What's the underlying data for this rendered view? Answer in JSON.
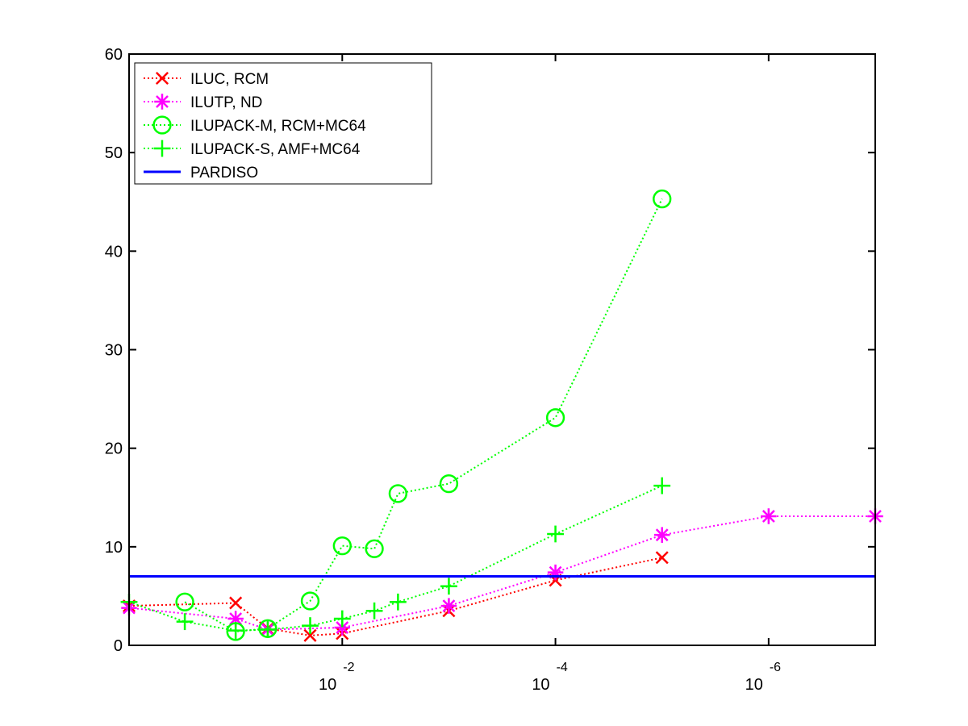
{
  "chart_data": {
    "type": "line",
    "x_scale": "log",
    "x_axis_reversed": true,
    "xlim": [
      1,
      1e-07
    ],
    "ylim": [
      0,
      60
    ],
    "y_ticks": [
      0,
      10,
      20,
      30,
      40,
      50,
      60
    ],
    "x_ticks": [
      {
        "value": 0.01,
        "base": "10",
        "exponent": "-2"
      },
      {
        "value": 0.0001,
        "base": "10",
        "exponent": "-4"
      },
      {
        "value": 1e-06,
        "base": "10",
        "exponent": "-6"
      }
    ],
    "legend_position": "top-left",
    "grid": false,
    "series": [
      {
        "name": "ILUC, RCM",
        "color": "#ff0000",
        "marker": "x",
        "line": "dotted",
        "x": [
          1,
          0.1,
          0.05,
          0.02,
          0.01,
          0.001,
          0.0001,
          1e-05
        ],
        "y": [
          4,
          4.3,
          1.7,
          1,
          1.2,
          3.5,
          6.6,
          8.9
        ]
      },
      {
        "name": "ILUTP,  ND",
        "color": "#ff00ff",
        "marker": "star",
        "line": "dotted",
        "x": [
          1,
          0.1,
          0.05,
          0.01,
          0.001,
          0.0001,
          1e-05,
          1e-06,
          1e-07
        ],
        "y": [
          3.8,
          2.7,
          1.6,
          1.8,
          4,
          7.4,
          11.2,
          13.1,
          13.1
        ]
      },
      {
        "name": "ILUPACK-M, RCM+MC64",
        "color": "#00ff00",
        "marker": "circle",
        "line": "dotted",
        "x": [
          0.3,
          0.1,
          0.05,
          0.02,
          0.01,
          0.005,
          0.003,
          0.001,
          0.0001,
          1e-05
        ],
        "y": [
          4.4,
          1.4,
          1.7,
          4.5,
          10.1,
          9.8,
          15.4,
          16.4,
          23.1,
          45.3
        ]
      },
      {
        "name": "ILUPACK-S, AMF+MC64",
        "color": "#00ff00",
        "marker": "plus",
        "line": "dotted",
        "x": [
          1,
          0.3,
          0.1,
          0.05,
          0.02,
          0.01,
          0.005,
          0.003,
          0.001,
          0.0001,
          1e-05
        ],
        "y": [
          4.4,
          2.4,
          1.5,
          1.6,
          2,
          2.7,
          3.5,
          4.4,
          6,
          11.3,
          16.2
        ]
      },
      {
        "name": "PARDISO",
        "color": "#0000ff",
        "marker": "none",
        "line": "solid",
        "x": [
          1,
          1e-07
        ],
        "y": [
          7,
          7
        ]
      }
    ]
  }
}
